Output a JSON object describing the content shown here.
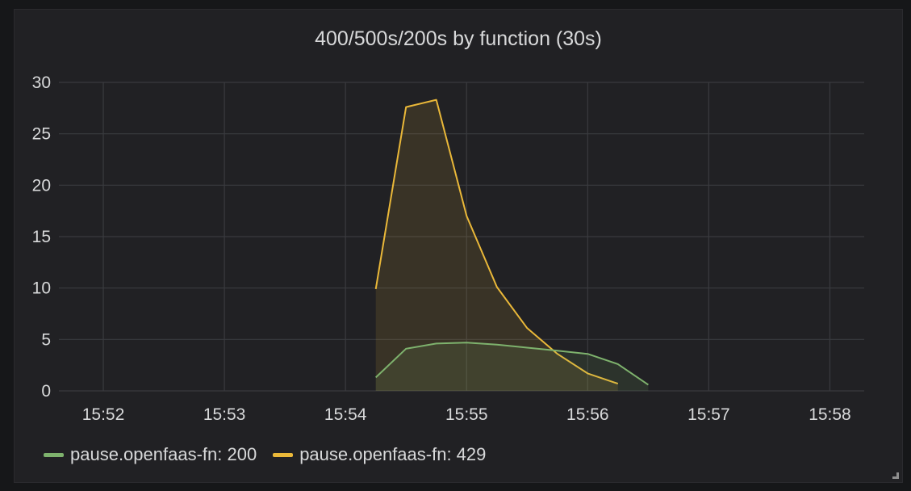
{
  "panel": {
    "title": "400/500s/200s by function (30s)"
  },
  "chart_data": {
    "type": "line",
    "title": "400/500s/200s by function (30s)",
    "xlabel": "",
    "ylabel": "",
    "x_ticks": [
      "15:52",
      "15:53",
      "15:54",
      "15:55",
      "15:56",
      "15:57",
      "15:58"
    ],
    "y_ticks": [
      0,
      5,
      10,
      15,
      20,
      25,
      30
    ],
    "ylim": [
      0,
      30
    ],
    "xlim": [
      "15:51:38",
      "15:58:17"
    ],
    "grid": true,
    "legend_position": "bottom-left",
    "series": [
      {
        "name": "pause.openfaas-fn: 200",
        "color": "#7eb26d",
        "fill": true,
        "points": [
          {
            "x": "15:54:15",
            "y": 1.3
          },
          {
            "x": "15:54:30",
            "y": 4.1
          },
          {
            "x": "15:54:45",
            "y": 4.6
          },
          {
            "x": "15:55:00",
            "y": 4.7
          },
          {
            "x": "15:55:15",
            "y": 4.5
          },
          {
            "x": "15:55:30",
            "y": 4.2
          },
          {
            "x": "15:55:45",
            "y": 3.9
          },
          {
            "x": "15:56:00",
            "y": 3.6
          },
          {
            "x": "15:56:15",
            "y": 2.6
          },
          {
            "x": "15:56:30",
            "y": 0.6
          }
        ]
      },
      {
        "name": "pause.openfaas-fn: 429",
        "color": "#eab839",
        "fill": true,
        "points": [
          {
            "x": "15:54:15",
            "y": 9.9
          },
          {
            "x": "15:54:30",
            "y": 27.6
          },
          {
            "x": "15:54:45",
            "y": 28.3
          },
          {
            "x": "15:55:00",
            "y": 17.0
          },
          {
            "x": "15:55:15",
            "y": 10.1
          },
          {
            "x": "15:55:30",
            "y": 6.1
          },
          {
            "x": "15:55:45",
            "y": 3.6
          },
          {
            "x": "15:56:00",
            "y": 1.7
          },
          {
            "x": "15:56:15",
            "y": 0.7
          }
        ]
      }
    ]
  }
}
